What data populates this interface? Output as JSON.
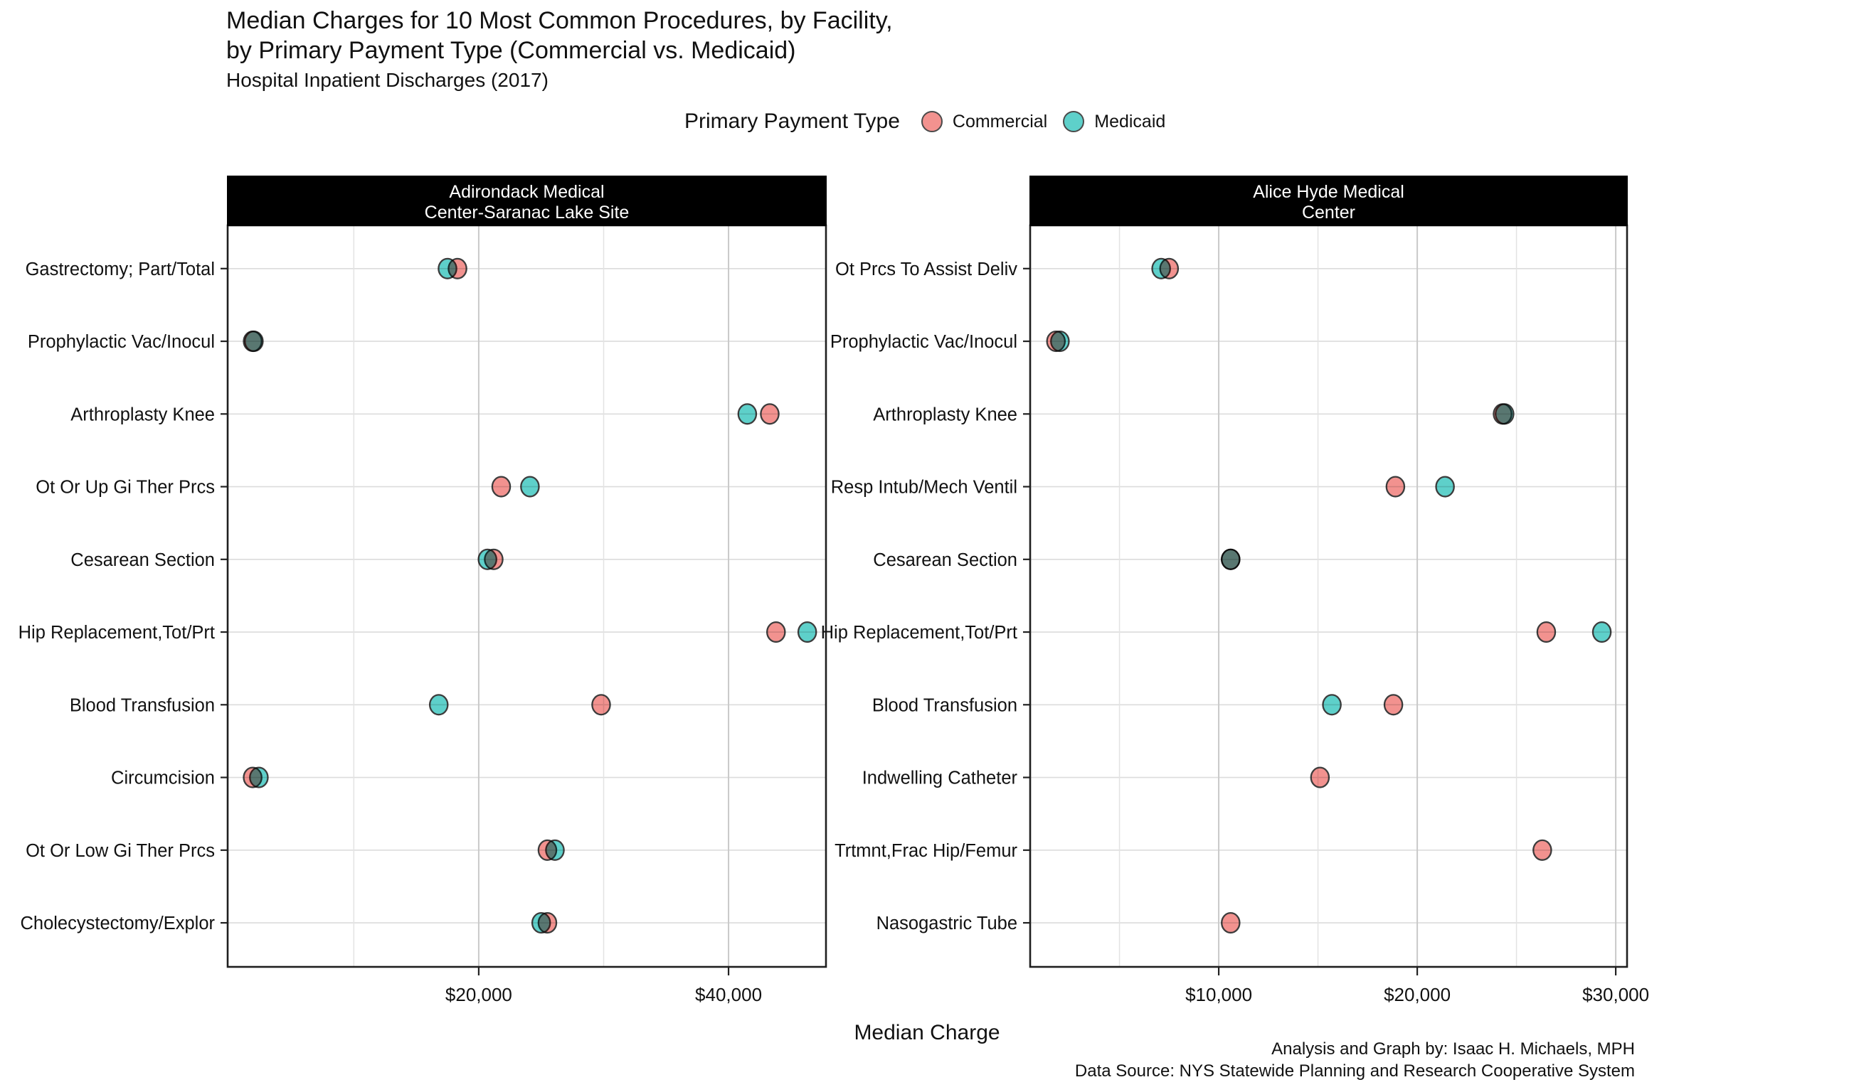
{
  "title": "Median Charges for 10 Most Common Procedures, by Facility,\nby Primary Payment Type (Commercial vs. Medicaid)",
  "subtitle": "Hospital Inpatient Discharges (2017)",
  "legend": {
    "title": "Primary Payment Type",
    "items": [
      {
        "label": "Commercial",
        "color": "#F2928F"
      },
      {
        "label": "Medicaid",
        "color": "#5ED0CA"
      }
    ]
  },
  "xaxis_title": "Median Charge",
  "caption": "Analysis and Graph by: Isaac H. Michaels, MPH\nData Source: NYS Statewide Planning and Research Cooperative System",
  "colors": {
    "commercial": "#F2928F",
    "medicaid": "#5ED0CA",
    "dot_stroke": "#3C3C3C",
    "strip_bg": "#000000",
    "strip_text": "#FFFFFF",
    "grid_major": "#C9C9C9",
    "grid_minor": "#E3E3E3",
    "grid_row": "#DCDCDC",
    "panel_border": "#1F1F1F",
    "tick": "#222222",
    "text": "#111111"
  },
  "chart_data": {
    "type": "scatter",
    "subtype": "dot-plot-faceted",
    "series_names": [
      "Commercial",
      "Medicaid"
    ],
    "x_unit": "USD median charge",
    "facets": [
      {
        "strip": "Adirondack Medical\nCenter-Saranac Lake Site",
        "axis": {
          "min": -100,
          "max": 47800,
          "major_ticks": [
            20000,
            40000
          ],
          "tick_labels": [
            "$20,000",
            "$40,000"
          ],
          "minor_ticks": [
            10000,
            30000
          ]
        },
        "rows": [
          {
            "label": "Gastrectomy; Part/Total",
            "commercial": 18300,
            "medicaid": 17500,
            "top": "commercial"
          },
          {
            "label": "Prophylactic Vac/Inocul",
            "commercial": 1900,
            "medicaid": 2000
          },
          {
            "label": "Arthroplasty Knee",
            "commercial": 43300,
            "medicaid": 41500
          },
          {
            "label": "Ot Or Up Gi Ther Prcs",
            "commercial": 21800,
            "medicaid": 24100
          },
          {
            "label": "Cesarean Section",
            "commercial": 21200,
            "medicaid": 20700
          },
          {
            "label": "Hip Replacement,Tot/Prt",
            "commercial": 43800,
            "medicaid": 46300
          },
          {
            "label": "Blood Transfusion",
            "commercial": 29800,
            "medicaid": 16800
          },
          {
            "label": "Circumcision",
            "commercial": 1900,
            "medicaid": 2400
          },
          {
            "label": "Ot Or Low Gi Ther Prcs",
            "commercial": 25500,
            "medicaid": 26100
          },
          {
            "label": "Cholecystectomy/Explor",
            "commercial": 25500,
            "medicaid": 25000
          }
        ]
      },
      {
        "strip": "Alice Hyde Medical\nCenter",
        "axis": {
          "min": 500,
          "max": 30570,
          "major_ticks": [
            10000,
            20000,
            30000
          ],
          "tick_labels": [
            "$10,000",
            "$20,000",
            "$30,000"
          ],
          "minor_ticks": [
            5000,
            15000,
            25000
          ]
        },
        "rows": [
          {
            "label": "Ot Prcs To Assist Deliv",
            "commercial": 7500,
            "medicaid": 7100,
            "top": "commercial"
          },
          {
            "label": "Prophylactic Vac/Inocul",
            "commercial": 1800,
            "medicaid": 2000
          },
          {
            "label": "Arthroplasty Knee",
            "commercial": 24300,
            "medicaid": 24400
          },
          {
            "label": "Resp Intub/Mech Ventil",
            "commercial": 18900,
            "medicaid": 21400
          },
          {
            "label": "Cesarean Section",
            "commercial": 10600,
            "medicaid": 10600
          },
          {
            "label": "Hip Replacement,Tot/Prt",
            "commercial": 26500,
            "medicaid": 29300
          },
          {
            "label": "Blood Transfusion",
            "commercial": 18800,
            "medicaid": 15700
          },
          {
            "label": "Indwelling Catheter",
            "commercial": 15100,
            "medicaid": null
          },
          {
            "label": "Trtmnt,Frac Hip/Femur",
            "commercial": 26300,
            "medicaid": null
          },
          {
            "label": "Nasogastric Tube",
            "commercial": 10600,
            "medicaid": null
          }
        ]
      }
    ]
  }
}
